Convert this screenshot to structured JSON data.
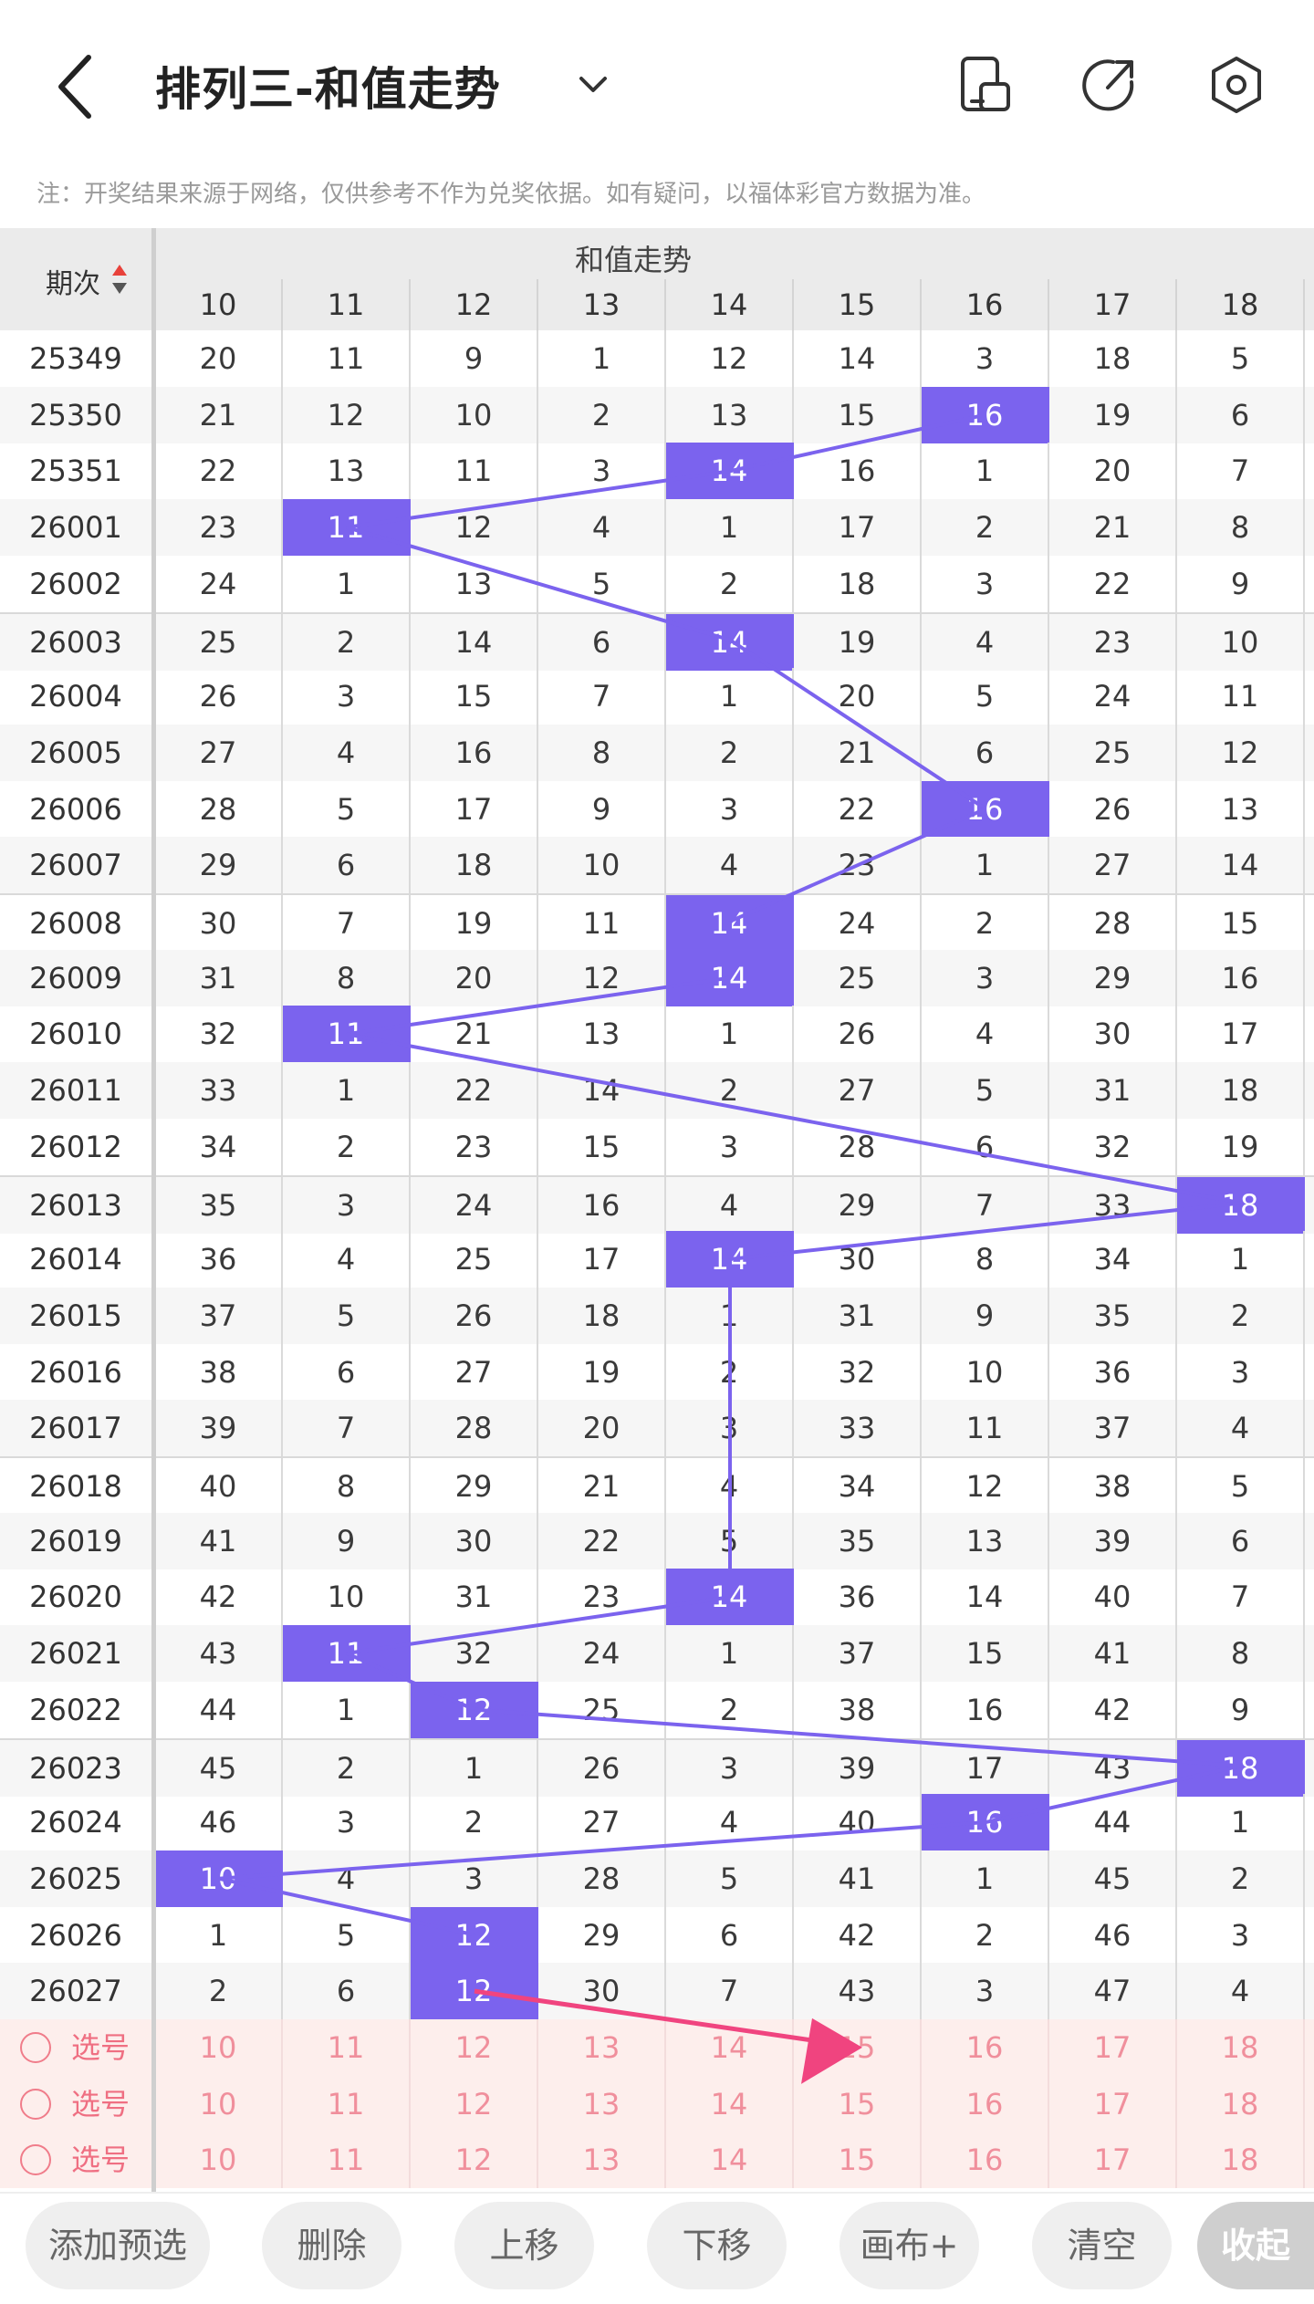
{
  "header": {
    "title": "排列三-和值走势",
    "icons": [
      "back-icon",
      "chevron-down-icon",
      "phone-rotate-icon",
      "share-icon",
      "settings-icon"
    ]
  },
  "note": "注：开奖结果来源于网络，仅供参考不作为兑奖依据。如有疑问，以福体彩官方数据为准。",
  "table": {
    "period_header": "期次",
    "trend_header": "和值走势",
    "columns": [
      "10",
      "11",
      "12",
      "13",
      "14",
      "15",
      "16",
      "17",
      "18"
    ],
    "accent_color": "#7b63ee",
    "rows": [
      {
        "period": "25349",
        "values": [
          "20",
          "11",
          "9",
          "1",
          "12",
          "14",
          "3",
          "18",
          "5"
        ],
        "hit": null
      },
      {
        "period": "25350",
        "values": [
          "21",
          "12",
          "10",
          "2",
          "13",
          "15",
          "16",
          "19",
          "6"
        ],
        "hit": 6
      },
      {
        "period": "25351",
        "values": [
          "22",
          "13",
          "11",
          "3",
          "14",
          "16",
          "1",
          "20",
          "7"
        ],
        "hit": 4
      },
      {
        "period": "26001",
        "values": [
          "23",
          "11",
          "12",
          "4",
          "1",
          "17",
          "2",
          "21",
          "8"
        ],
        "hit": 1
      },
      {
        "period": "26002",
        "values": [
          "24",
          "1",
          "13",
          "5",
          "2",
          "18",
          "3",
          "22",
          "9"
        ],
        "hit": null
      },
      {
        "period": "26003",
        "values": [
          "25",
          "2",
          "14",
          "6",
          "14",
          "19",
          "4",
          "23",
          "10"
        ],
        "hit": 4
      },
      {
        "period": "26004",
        "values": [
          "26",
          "3",
          "15",
          "7",
          "1",
          "20",
          "5",
          "24",
          "11"
        ],
        "hit": null
      },
      {
        "period": "26005",
        "values": [
          "27",
          "4",
          "16",
          "8",
          "2",
          "21",
          "6",
          "25",
          "12"
        ],
        "hit": null
      },
      {
        "period": "26006",
        "values": [
          "28",
          "5",
          "17",
          "9",
          "3",
          "22",
          "16",
          "26",
          "13"
        ],
        "hit": 6
      },
      {
        "period": "26007",
        "values": [
          "29",
          "6",
          "18",
          "10",
          "4",
          "23",
          "1",
          "27",
          "14"
        ],
        "hit": null
      },
      {
        "period": "26008",
        "values": [
          "30",
          "7",
          "19",
          "11",
          "14",
          "24",
          "2",
          "28",
          "15"
        ],
        "hit": 4
      },
      {
        "period": "26009",
        "values": [
          "31",
          "8",
          "20",
          "12",
          "14",
          "25",
          "3",
          "29",
          "16"
        ],
        "hit": 4
      },
      {
        "period": "26010",
        "values": [
          "32",
          "11",
          "21",
          "13",
          "1",
          "26",
          "4",
          "30",
          "17"
        ],
        "hit": 1
      },
      {
        "period": "26011",
        "values": [
          "33",
          "1",
          "22",
          "14",
          "2",
          "27",
          "5",
          "31",
          "18"
        ],
        "hit": null
      },
      {
        "period": "26012",
        "values": [
          "34",
          "2",
          "23",
          "15",
          "3",
          "28",
          "6",
          "32",
          "19"
        ],
        "hit": null
      },
      {
        "period": "26013",
        "values": [
          "35",
          "3",
          "24",
          "16",
          "4",
          "29",
          "7",
          "33",
          "18"
        ],
        "hit": 8
      },
      {
        "period": "26014",
        "values": [
          "36",
          "4",
          "25",
          "17",
          "14",
          "30",
          "8",
          "34",
          "1"
        ],
        "hit": 4
      },
      {
        "period": "26015",
        "values": [
          "37",
          "5",
          "26",
          "18",
          "1",
          "31",
          "9",
          "35",
          "2"
        ],
        "hit": null
      },
      {
        "period": "26016",
        "values": [
          "38",
          "6",
          "27",
          "19",
          "2",
          "32",
          "10",
          "36",
          "3"
        ],
        "hit": null
      },
      {
        "period": "26017",
        "values": [
          "39",
          "7",
          "28",
          "20",
          "3",
          "33",
          "11",
          "37",
          "4"
        ],
        "hit": null
      },
      {
        "period": "26018",
        "values": [
          "40",
          "8",
          "29",
          "21",
          "4",
          "34",
          "12",
          "38",
          "5"
        ],
        "hit": null
      },
      {
        "period": "26019",
        "values": [
          "41",
          "9",
          "30",
          "22",
          "5",
          "35",
          "13",
          "39",
          "6"
        ],
        "hit": null
      },
      {
        "period": "26020",
        "values": [
          "42",
          "10",
          "31",
          "23",
          "14",
          "36",
          "14",
          "40",
          "7"
        ],
        "hit": 4
      },
      {
        "period": "26021",
        "values": [
          "43",
          "11",
          "32",
          "24",
          "1",
          "37",
          "15",
          "41",
          "8"
        ],
        "hit": 1
      },
      {
        "period": "26022",
        "values": [
          "44",
          "1",
          "12",
          "25",
          "2",
          "38",
          "16",
          "42",
          "9"
        ],
        "hit": 2
      },
      {
        "period": "26023",
        "values": [
          "45",
          "2",
          "1",
          "26",
          "3",
          "39",
          "17",
          "43",
          "18"
        ],
        "hit": 8
      },
      {
        "period": "26024",
        "values": [
          "46",
          "3",
          "2",
          "27",
          "4",
          "40",
          "16",
          "44",
          "1"
        ],
        "hit": 6
      },
      {
        "period": "26025",
        "values": [
          "10",
          "4",
          "3",
          "28",
          "5",
          "41",
          "1",
          "45",
          "2"
        ],
        "hit": 0
      },
      {
        "period": "26026",
        "values": [
          "1",
          "5",
          "12",
          "29",
          "6",
          "42",
          "2",
          "46",
          "3"
        ],
        "hit": 2
      },
      {
        "period": "26027",
        "values": [
          "2",
          "6",
          "12",
          "30",
          "7",
          "43",
          "3",
          "47",
          "4"
        ],
        "hit": 2
      }
    ],
    "pick_rows": [
      {
        "label": "选号",
        "values": [
          "10",
          "11",
          "12",
          "13",
          "14",
          "15",
          "16",
          "17",
          "18"
        ]
      },
      {
        "label": "选号",
        "values": [
          "10",
          "11",
          "12",
          "13",
          "14",
          "15",
          "16",
          "17",
          "18"
        ]
      },
      {
        "label": "选号",
        "values": [
          "10",
          "11",
          "12",
          "13",
          "14",
          "15",
          "16",
          "17",
          "18"
        ]
      }
    ]
  },
  "toolbar": {
    "add_preselect": "添加预选",
    "delete": "删除",
    "move_up": "上移",
    "move_down": "下移",
    "canvas": "画布+",
    "clear": "清空",
    "collapse": "收起"
  }
}
